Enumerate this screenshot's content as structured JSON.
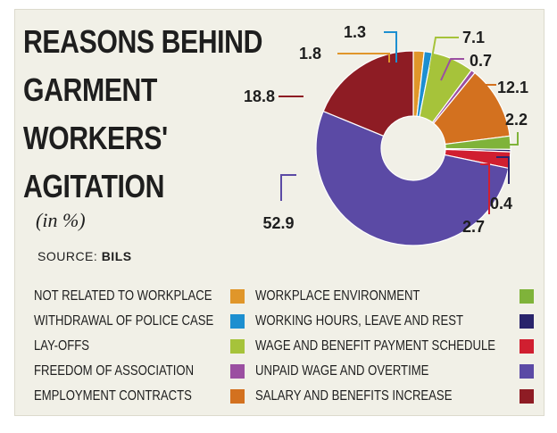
{
  "title_lines": [
    "REASONS BEHIND",
    "GARMENT",
    "WORKERS'",
    "AGITATION"
  ],
  "subtitle": "(in %)",
  "source_label": "SOURCE:",
  "source_name": "BILS",
  "chart_data": {
    "type": "pie",
    "title": "REASONS BEHIND GARMENT WORKERS' AGITATION",
    "unit": "(in %)",
    "donut": true,
    "series": [
      {
        "name": "NOT RELATED TO WORKPLACE",
        "value": 1.8,
        "color": "#e0962a"
      },
      {
        "name": "WITHDRAWAL OF POLICE CASE",
        "value": 1.3,
        "color": "#1d8fd0"
      },
      {
        "name": "LAY-OFFS",
        "value": 7.1,
        "color": "#a6c33a"
      },
      {
        "name": "FREEDOM OF ASSOCIATION",
        "value": 0.7,
        "color": "#9b4fa1"
      },
      {
        "name": "EMPLOYMENT CONTRACTS",
        "value": 12.1,
        "color": "#d3711f"
      },
      {
        "name": "WORKPLACE ENVIRONMENT",
        "value": 2.2,
        "color": "#7fb33a"
      },
      {
        "name": "WORKING HOURS, LEAVE AND REST",
        "value": 0.4,
        "color": "#29246b"
      },
      {
        "name": "WAGE AND BENEFIT PAYMENT SCHEDULE",
        "value": 2.7,
        "color": "#d01f30"
      },
      {
        "name": "UNPAID WAGE AND OVERTIME",
        "value": 52.9,
        "color": "#5b4aa5"
      },
      {
        "name": "SALARY AND BENEFITS INCREASE",
        "value": 18.8,
        "color": "#8e1c24"
      }
    ],
    "legend": [
      {
        "label": "NOT RELATED TO WORKPLACE",
        "color": "#e0962a"
      },
      {
        "label": "WITHDRAWAL OF POLICE CASE",
        "color": "#1d8fd0"
      },
      {
        "label": "LAY-OFFS",
        "color": "#a6c33a"
      },
      {
        "label": "FREEDOM OF ASSOCIATION",
        "color": "#9b4fa1"
      },
      {
        "label": "EMPLOYMENT CONTRACTS",
        "color": "#d3711f"
      },
      {
        "label": "WORKPLACE ENVIRONMENT",
        "color": "#7fb33a"
      },
      {
        "label": "WORKING HOURS, LEAVE AND REST",
        "color": "#29246b"
      },
      {
        "label": "WAGE AND BENEFIT PAYMENT SCHEDULE",
        "color": "#d01f30"
      },
      {
        "label": "UNPAID WAGE AND OVERTIME",
        "color": "#5b4aa5"
      },
      {
        "label": "SALARY AND BENEFITS INCREASE",
        "color": "#8e1c24"
      }
    ],
    "legend_placement": "bottom"
  }
}
